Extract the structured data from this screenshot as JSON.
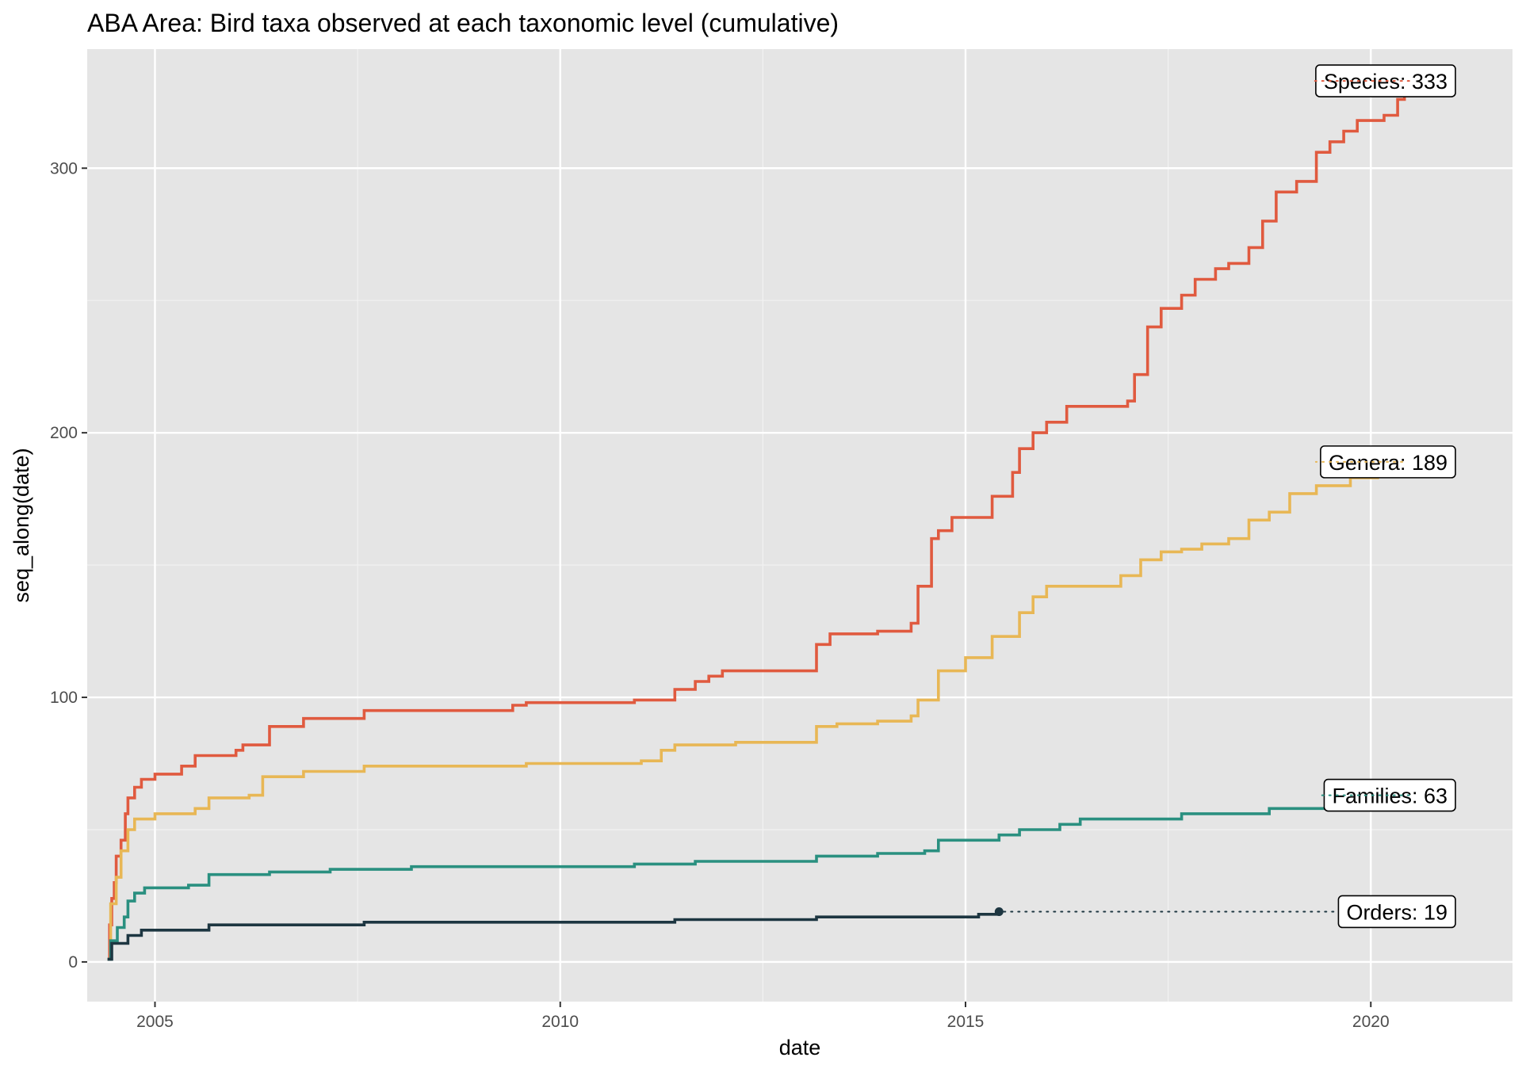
{
  "chart_data": {
    "type": "line",
    "title": "ABA Area: Bird taxa observed at each taxonomic level (cumulative)",
    "xlabel": "date",
    "ylabel": "seq_along(date)",
    "xlim": [
      "2004-03-01",
      "2021-10-01"
    ],
    "ylim": [
      -15,
      345
    ],
    "x_ticks": [
      "2005",
      "2010",
      "2015",
      "2020"
    ],
    "y_ticks": [
      0,
      100,
      200,
      300
    ],
    "grid": true,
    "panel_background": "#e5e5e5",
    "legend": "none",
    "series": [
      {
        "color": "#e05a3f",
        "end_label": "Species: 333",
        "end_value": 333,
        "points": [
          [
            "2004-06-01",
            1
          ],
          [
            "2004-06-10",
            14
          ],
          [
            "2004-06-20",
            24
          ],
          [
            "2004-07-01",
            30
          ],
          [
            "2004-07-10",
            40
          ],
          [
            "2004-08-01",
            46
          ],
          [
            "2004-08-20",
            56
          ],
          [
            "2004-09-01",
            62
          ],
          [
            "2004-10-01",
            66
          ],
          [
            "2004-11-01",
            69
          ],
          [
            "2005-01-01",
            71
          ],
          [
            "2005-05-01",
            74
          ],
          [
            "2005-07-01",
            78
          ],
          [
            "2006-01-01",
            80
          ],
          [
            "2006-02-01",
            82
          ],
          [
            "2006-06-01",
            89
          ],
          [
            "2006-11-01",
            92
          ],
          [
            "2007-08-01",
            95
          ],
          [
            "2009-06-01",
            97
          ],
          [
            "2009-08-01",
            98
          ],
          [
            "2010-12-01",
            99
          ],
          [
            "2011-06-01",
            103
          ],
          [
            "2011-09-01",
            106
          ],
          [
            "2011-11-01",
            108
          ],
          [
            "2012-01-01",
            110
          ],
          [
            "2013-02-01",
            110
          ],
          [
            "2013-03-01",
            120
          ],
          [
            "2013-05-01",
            124
          ],
          [
            "2013-12-01",
            125
          ],
          [
            "2014-05-01",
            128
          ],
          [
            "2014-06-01",
            142
          ],
          [
            "2014-08-01",
            160
          ],
          [
            "2014-09-01",
            163
          ],
          [
            "2014-11-01",
            168
          ],
          [
            "2015-05-01",
            176
          ],
          [
            "2015-08-01",
            185
          ],
          [
            "2015-09-01",
            194
          ],
          [
            "2015-11-01",
            200
          ],
          [
            "2016-01-01",
            204
          ],
          [
            "2016-04-01",
            210
          ],
          [
            "2016-07-01",
            210
          ],
          [
            "2017-01-01",
            212
          ],
          [
            "2017-02-01",
            222
          ],
          [
            "2017-04-01",
            240
          ],
          [
            "2017-06-01",
            247
          ],
          [
            "2017-09-01",
            252
          ],
          [
            "2017-11-01",
            258
          ],
          [
            "2018-02-01",
            262
          ],
          [
            "2018-04-01",
            264
          ],
          [
            "2018-07-01",
            270
          ],
          [
            "2018-09-01",
            280
          ],
          [
            "2018-11-01",
            291
          ],
          [
            "2019-02-01",
            295
          ],
          [
            "2019-05-01",
            306
          ],
          [
            "2019-07-01",
            310
          ],
          [
            "2019-09-01",
            314
          ],
          [
            "2019-11-01",
            318
          ],
          [
            "2020-03-01",
            320
          ],
          [
            "2020-05-01",
            326
          ],
          [
            "2020-06-01",
            333
          ]
        ]
      },
      {
        "color": "#e8b755",
        "end_label": "Genera: 189",
        "end_value": 189,
        "points": [
          [
            "2004-06-01",
            1
          ],
          [
            "2004-06-15",
            22
          ],
          [
            "2004-07-10",
            32
          ],
          [
            "2004-08-01",
            42
          ],
          [
            "2004-09-01",
            50
          ],
          [
            "2004-10-01",
            54
          ],
          [
            "2005-01-01",
            56
          ],
          [
            "2005-07-01",
            58
          ],
          [
            "2005-09-01",
            62
          ],
          [
            "2006-03-01",
            63
          ],
          [
            "2006-05-01",
            70
          ],
          [
            "2006-11-01",
            72
          ],
          [
            "2007-08-01",
            74
          ],
          [
            "2009-08-01",
            75
          ],
          [
            "2011-01-01",
            76
          ],
          [
            "2011-04-01",
            80
          ],
          [
            "2011-06-01",
            82
          ],
          [
            "2012-03-01",
            83
          ],
          [
            "2013-02-01",
            83
          ],
          [
            "2013-03-01",
            89
          ],
          [
            "2013-06-01",
            90
          ],
          [
            "2013-12-01",
            91
          ],
          [
            "2014-05-01",
            93
          ],
          [
            "2014-06-01",
            99
          ],
          [
            "2014-09-01",
            110
          ],
          [
            "2015-01-01",
            115
          ],
          [
            "2015-05-01",
            123
          ],
          [
            "2015-09-01",
            132
          ],
          [
            "2015-11-01",
            138
          ],
          [
            "2016-01-01",
            142
          ],
          [
            "2016-07-01",
            142
          ],
          [
            "2016-12-01",
            146
          ],
          [
            "2017-03-01",
            152
          ],
          [
            "2017-06-01",
            155
          ],
          [
            "2017-09-01",
            156
          ],
          [
            "2017-12-01",
            158
          ],
          [
            "2018-04-01",
            160
          ],
          [
            "2018-07-01",
            167
          ],
          [
            "2018-10-01",
            170
          ],
          [
            "2019-01-01",
            177
          ],
          [
            "2019-05-01",
            180
          ],
          [
            "2019-10-01",
            183
          ],
          [
            "2020-02-01",
            184
          ],
          [
            "2020-05-01",
            189
          ]
        ]
      },
      {
        "color": "#2a9080",
        "end_label": "Families: 63",
        "end_value": 63,
        "points": [
          [
            "2004-06-01",
            1
          ],
          [
            "2004-06-15",
            8
          ],
          [
            "2004-07-15",
            13
          ],
          [
            "2004-08-15",
            17
          ],
          [
            "2004-09-01",
            23
          ],
          [
            "2004-10-01",
            26
          ],
          [
            "2004-11-15",
            28
          ],
          [
            "2005-06-01",
            29
          ],
          [
            "2005-09-01",
            33
          ],
          [
            "2006-06-01",
            34
          ],
          [
            "2007-03-01",
            35
          ],
          [
            "2008-03-01",
            36
          ],
          [
            "2010-12-01",
            37
          ],
          [
            "2011-09-01",
            38
          ],
          [
            "2013-02-01",
            38
          ],
          [
            "2013-03-01",
            40
          ],
          [
            "2013-12-01",
            41
          ],
          [
            "2014-07-01",
            42
          ],
          [
            "2014-09-01",
            46
          ],
          [
            "2015-06-01",
            48
          ],
          [
            "2015-09-01",
            50
          ],
          [
            "2016-03-01",
            52
          ],
          [
            "2016-06-01",
            54
          ],
          [
            "2017-09-01",
            56
          ],
          [
            "2018-07-01",
            56
          ],
          [
            "2018-10-01",
            58
          ],
          [
            "2019-09-01",
            60
          ],
          [
            "2020-03-01",
            62
          ],
          [
            "2020-06-01",
            63
          ]
        ]
      },
      {
        "color": "#1d3641",
        "end_label": "Orders: 19",
        "end_value": 19,
        "points": [
          [
            "2004-06-01",
            1
          ],
          [
            "2004-06-20",
            7
          ],
          [
            "2004-09-01",
            10
          ],
          [
            "2004-11-01",
            12
          ],
          [
            "2005-09-01",
            14
          ],
          [
            "2007-08-01",
            15
          ],
          [
            "2011-06-01",
            16
          ],
          [
            "2013-03-01",
            17
          ],
          [
            "2015-03-01",
            18
          ],
          [
            "2015-06-01",
            19
          ]
        ]
      }
    ]
  }
}
